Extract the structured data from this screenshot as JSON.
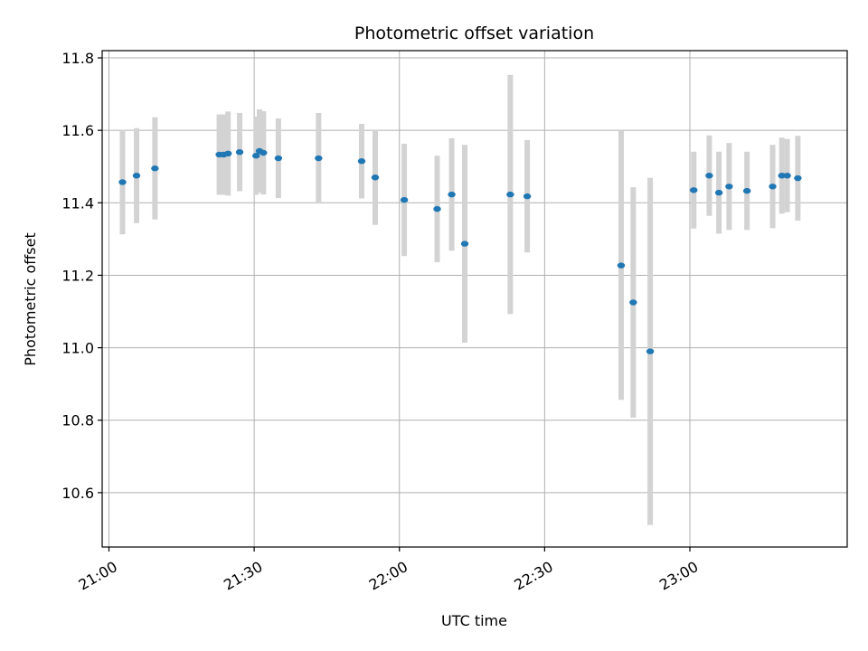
{
  "chart_data": {
    "type": "scatter",
    "title": "Photometric offset variation",
    "xlabel": "UTC time",
    "ylabel": "Photometric offset",
    "x_axis": {
      "kind": "time",
      "range_minutes": [
        -1.4,
        152.5
      ],
      "ticks": [
        {
          "minutes": 0,
          "label": "21:00"
        },
        {
          "minutes": 30,
          "label": "21:30"
        },
        {
          "minutes": 60,
          "label": "22:00"
        },
        {
          "minutes": 90,
          "label": "22:30"
        },
        {
          "minutes": 120,
          "label": "23:00"
        }
      ]
    },
    "y_axis": {
      "ylim": [
        10.45,
        11.82
      ],
      "ticks": [
        10.6,
        10.8,
        11.0,
        11.2,
        11.4,
        11.6,
        11.8
      ],
      "tick_labels": [
        "10.6",
        "10.8",
        "11.0",
        "11.2",
        "11.4",
        "11.6",
        "11.8"
      ]
    },
    "grid": true,
    "colors": {
      "point": "#1f77b4",
      "errorbar": "#d3d3d3"
    },
    "points": [
      {
        "t": "21:02:48",
        "y": 11.457,
        "err": 0.144
      },
      {
        "t": "21:05:42",
        "y": 11.475,
        "err": 0.131
      },
      {
        "t": "21:09:30",
        "y": 11.495,
        "err": 0.141
      },
      {
        "t": "21:22:48",
        "y": 11.533,
        "err": 0.111
      },
      {
        "t": "21:23:42",
        "y": 11.533,
        "err": 0.111
      },
      {
        "t": "21:24:36",
        "y": 11.536,
        "err": 0.116
      },
      {
        "t": "21:27:00",
        "y": 11.54,
        "err": 0.108
      },
      {
        "t": "21:30:24",
        "y": 11.53,
        "err": 0.108
      },
      {
        "t": "21:31:06",
        "y": 11.543,
        "err": 0.115
      },
      {
        "t": "21:31:54",
        "y": 11.538,
        "err": 0.115
      },
      {
        "t": "21:35:00",
        "y": 11.523,
        "err": 0.11
      },
      {
        "t": "21:43:18",
        "y": 11.523,
        "err": 0.125
      },
      {
        "t": "21:52:12",
        "y": 11.515,
        "err": 0.103
      },
      {
        "t": "21:55:00",
        "y": 11.47,
        "err": 0.131
      },
      {
        "t": "22:01:00",
        "y": 11.408,
        "err": 0.155
      },
      {
        "t": "22:07:48",
        "y": 11.383,
        "err": 0.147
      },
      {
        "t": "22:10:48",
        "y": 11.423,
        "err": 0.155
      },
      {
        "t": "22:13:30",
        "y": 11.287,
        "err": 0.273
      },
      {
        "t": "22:22:54",
        "y": 11.423,
        "err": 0.33
      },
      {
        "t": "22:26:24",
        "y": 11.418,
        "err": 0.155
      },
      {
        "t": "22:45:48",
        "y": 11.227,
        "err": 0.371
      },
      {
        "t": "22:48:18",
        "y": 11.125,
        "err": 0.318
      },
      {
        "t": "22:51:48",
        "y": 10.99,
        "err": 0.479
      },
      {
        "t": "23:00:48",
        "y": 11.435,
        "err": 0.106
      },
      {
        "t": "23:04:00",
        "y": 11.475,
        "err": 0.111
      },
      {
        "t": "23:06:00",
        "y": 11.428,
        "err": 0.113
      },
      {
        "t": "23:08:06",
        "y": 11.445,
        "err": 0.12
      },
      {
        "t": "23:11:48",
        "y": 11.433,
        "err": 0.108
      },
      {
        "t": "23:17:06",
        "y": 11.445,
        "err": 0.115
      },
      {
        "t": "23:19:00",
        "y": 11.475,
        "err": 0.105
      },
      {
        "t": "23:20:06",
        "y": 11.475,
        "err": 0.101
      },
      {
        "t": "23:22:18",
        "y": 11.468,
        "err": 0.117
      }
    ]
  }
}
